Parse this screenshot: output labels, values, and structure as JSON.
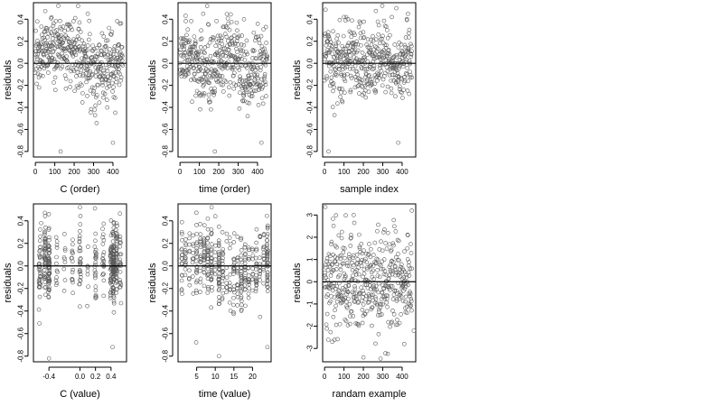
{
  "chart_data": [
    {
      "id": "c-order",
      "type": "scatter",
      "xlabel": "C (order)",
      "ylabel": "residuals",
      "xlim": [
        -10,
        470
      ],
      "ylim": [
        -0.85,
        0.55
      ],
      "xticks": [
        0,
        100,
        200,
        300,
        400
      ],
      "yticks": [
        -0.8,
        -0.6,
        -0.4,
        -0.2,
        0.0,
        0.2,
        0.4
      ],
      "reference_line": 0,
      "generator": "c_order",
      "points": 450,
      "notable_points": [
        [
          220,
          0.52
        ],
        [
          130,
          -0.8
        ],
        [
          400,
          -0.72
        ],
        [
          270,
          0.45
        ],
        [
          10,
          0.38
        ]
      ]
    },
    {
      "id": "time-order",
      "type": "scatter",
      "xlabel": "time (order)",
      "ylabel": "residuals",
      "xlim": [
        -10,
        470
      ],
      "ylim": [
        -0.85,
        0.55
      ],
      "xticks": [
        0,
        100,
        200,
        300,
        400
      ],
      "yticks": [
        -0.8,
        -0.6,
        -0.4,
        -0.2,
        0.0,
        0.2,
        0.4
      ],
      "reference_line": 0,
      "generator": "time_order",
      "points": 450,
      "notable_points": [
        [
          140,
          0.52
        ],
        [
          180,
          -0.8
        ],
        [
          420,
          -0.72
        ],
        [
          120,
          0.45
        ],
        [
          330,
          0.4
        ]
      ]
    },
    {
      "id": "sample-index",
      "type": "scatter",
      "xlabel": "sample index",
      "ylabel": "residuals",
      "xlim": [
        -10,
        470
      ],
      "ylim": [
        -0.85,
        0.55
      ],
      "xticks": [
        0,
        100,
        200,
        300,
        400
      ],
      "yticks": [
        -0.8,
        -0.6,
        -0.4,
        -0.2,
        0.0,
        0.2,
        0.4
      ],
      "reference_line": 0,
      "generator": "sample_index",
      "points": 450,
      "notable_points": [
        [
          20,
          -0.8
        ],
        [
          370,
          0.5
        ],
        [
          380,
          -0.72
        ],
        [
          100,
          0.42
        ],
        [
          430,
          0.45
        ]
      ]
    },
    {
      "id": "c-value",
      "type": "scatter",
      "xlabel": "C (value)",
      "ylabel": "residuals",
      "xlim": [
        -0.6,
        0.6
      ],
      "ylim": [
        -0.85,
        0.55
      ],
      "xticks": [
        -0.4,
        0.0,
        0.2,
        0.4
      ],
      "xtick_labels": [
        "-0.4",
        "0.0",
        "0.2",
        "0.4"
      ],
      "yticks": [
        -0.8,
        -0.6,
        -0.4,
        -0.2,
        0.0,
        0.2,
        0.4
      ],
      "reference_line": 0,
      "generator": "c_value",
      "points": 450,
      "notable_points": [
        [
          -0.4,
          -0.82
        ],
        [
          0.0,
          0.52
        ],
        [
          0.42,
          -0.72
        ],
        [
          -0.5,
          0.38
        ],
        [
          0.3,
          0.28
        ]
      ]
    },
    {
      "id": "time-value",
      "type": "scatter",
      "xlabel": "time (value)",
      "ylabel": "residuals",
      "xlim": [
        0,
        25
      ],
      "ylim": [
        -0.85,
        0.55
      ],
      "xticks": [
        5,
        10,
        15,
        20
      ],
      "yticks": [
        -0.8,
        -0.6,
        -0.4,
        -0.2,
        0.0,
        0.2,
        0.4
      ],
      "reference_line": 0,
      "generator": "time_value",
      "points": 450,
      "notable_points": [
        [
          9,
          0.52
        ],
        [
          11,
          -0.8
        ],
        [
          24,
          -0.72
        ],
        [
          8,
          0.42
        ],
        [
          1,
          0.3
        ]
      ]
    },
    {
      "id": "random-example",
      "type": "scatter",
      "xlabel": "randam example",
      "ylabel": "residuals",
      "xlim": [
        -10,
        470
      ],
      "ylim": [
        -3.6,
        3.5
      ],
      "xticks": [
        0,
        100,
        200,
        300,
        400
      ],
      "yticks": [
        -3,
        -2,
        -1,
        0,
        1,
        2,
        3
      ],
      "reference_line": 0,
      "generator": "random",
      "points": 450,
      "notable_points": [
        [
          450,
          3.2
        ],
        [
          200,
          -3.4
        ],
        [
          150,
          3.0
        ],
        [
          40,
          -2.7
        ],
        [
          460,
          -2.2
        ]
      ]
    }
  ]
}
